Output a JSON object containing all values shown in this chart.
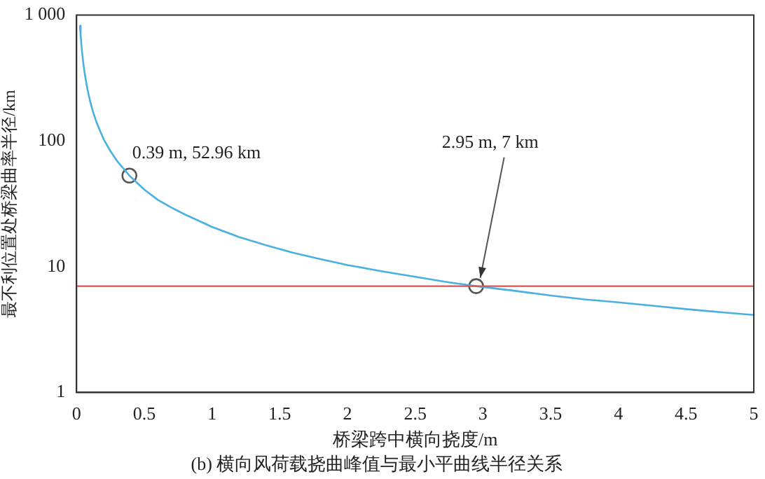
{
  "chart_data": {
    "type": "line",
    "title": "(b) 横向风荷载挠曲峰值与最小平曲线半径关系",
    "xlabel": "桥梁跨中横向挠度/m",
    "ylabel": "最不利位置处桥梁曲率半径/km",
    "log": "y",
    "xlim": [
      0,
      5
    ],
    "xticks": [
      0,
      0.5,
      1,
      1.5,
      2,
      2.5,
      3,
      3.5,
      4,
      4.5,
      5
    ],
    "ylim": [
      1,
      1000
    ],
    "yticks": [
      1,
      10,
      100,
      {
        "value": 1000,
        "label": "1 000"
      }
    ],
    "grid": false,
    "legend": false,
    "series": [
      {
        "color": "#4ab0e0",
        "marker": "none",
        "x": [
          0.025,
          0.03,
          0.04,
          0.05,
          0.06,
          0.08,
          0.1,
          0.12,
          0.15,
          0.2,
          0.25,
          0.3,
          0.39,
          0.5,
          0.6,
          0.7,
          0.8,
          1,
          1.2,
          1.4,
          1.6,
          1.8,
          2,
          2.25,
          2.5,
          2.75,
          2.95,
          3.25,
          3.5,
          3.75,
          4,
          4.25,
          4.5,
          4.75,
          5
        ],
        "values": [
          826,
          688,
          516,
          413,
          344,
          258,
          207,
          172,
          138,
          103,
          83,
          69,
          52.96,
          41,
          34,
          29.5,
          26,
          20.7,
          17.2,
          14.8,
          12.9,
          11.5,
          10.3,
          9.2,
          8.3,
          7.5,
          7,
          6.4,
          5.9,
          5.5,
          5.2,
          4.9,
          4.6,
          4.35,
          4.13
        ]
      },
      {
        "type": "scatter",
        "color": "#555555",
        "marker": "circle",
        "x": [
          0.39,
          2.95
        ],
        "values": [
          52.96,
          7
        ]
      }
    ],
    "ref_lines": [
      {
        "axis": "y",
        "value": 7,
        "color": "#e05050"
      }
    ],
    "annotations": [
      {
        "text": "0.39 m, 52.96 km",
        "x": 0.39,
        "y": 52.96
      },
      {
        "text": "2.95 m, 7 km",
        "x": 2.95,
        "y": 7
      }
    ]
  }
}
